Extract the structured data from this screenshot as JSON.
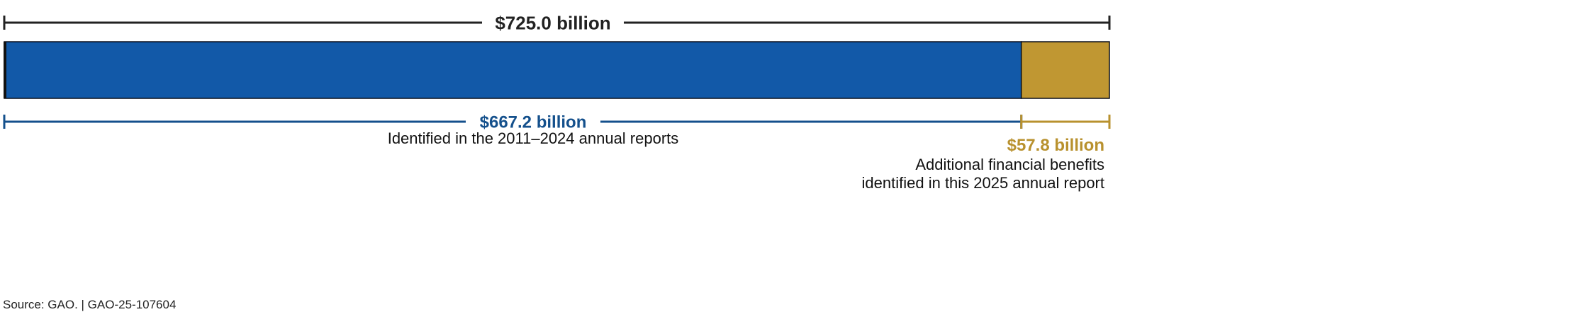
{
  "chart_data": {
    "type": "bar",
    "orientation": "horizontal-stacked",
    "total": {
      "value": 725.0,
      "label": "$725.0 billion"
    },
    "segments": [
      {
        "value": 667.2,
        "label": "$667.2 billion",
        "description": [
          "Identified in the 2011–2024 annual reports"
        ],
        "color": "#1259a8",
        "label_color": "#14508c"
      },
      {
        "value": 57.8,
        "label": "$57.8 billion",
        "description": [
          "Additional financial benefits",
          "identified in this 2025 annual report"
        ],
        "color": "#c09732",
        "label_color": "#b8912e"
      }
    ]
  },
  "source": "Source: GAO.  |  GAO-25-107604"
}
